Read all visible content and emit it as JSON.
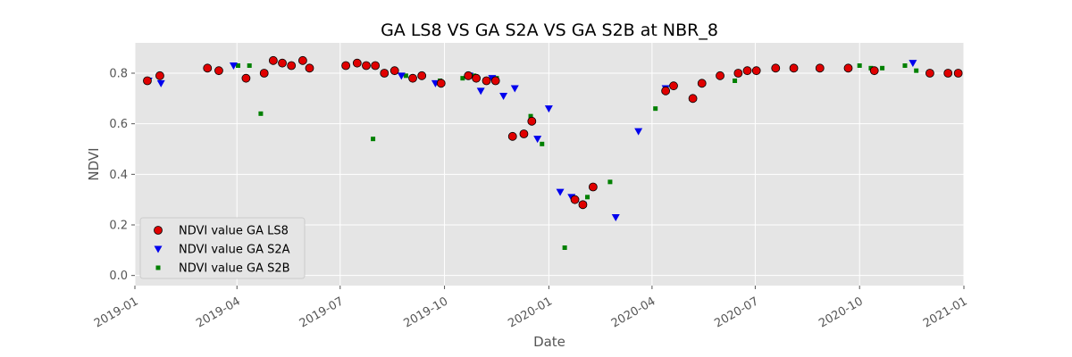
{
  "chart_data": {
    "type": "scatter",
    "title": "GA LS8 VS GA S2A VS GA S2B at NBR_8",
    "xlabel": "Date",
    "ylabel": "NDVI",
    "xlim": [
      "2019-01-01",
      "2021-01-01"
    ],
    "ylim": [
      -0.04,
      0.92
    ],
    "x_ticks": [
      "2019-01",
      "2019-04",
      "2019-07",
      "2019-10",
      "2020-01",
      "2020-04",
      "2020-07",
      "2020-10",
      "2021-01"
    ],
    "y_ticks": [
      "0.0",
      "0.2",
      "0.4",
      "0.6",
      "0.8"
    ],
    "grid": true,
    "legend_position": "lower-left",
    "series": [
      {
        "name": "NDVI value GA LS8",
        "marker": "circle",
        "color": "#e00000",
        "edge_color": "#000000",
        "points": [
          [
            "2019-01-12",
            0.77
          ],
          [
            "2019-01-23",
            0.79
          ],
          [
            "2019-03-06",
            0.82
          ],
          [
            "2019-03-16",
            0.81
          ],
          [
            "2019-04-09",
            0.78
          ],
          [
            "2019-04-25",
            0.8
          ],
          [
            "2019-05-03",
            0.85
          ],
          [
            "2019-05-11",
            0.84
          ],
          [
            "2019-05-19",
            0.83
          ],
          [
            "2019-05-29",
            0.85
          ],
          [
            "2019-06-04",
            0.82
          ],
          [
            "2019-07-06",
            0.83
          ],
          [
            "2019-07-16",
            0.84
          ],
          [
            "2019-07-24",
            0.83
          ],
          [
            "2019-08-01",
            0.83
          ],
          [
            "2019-08-09",
            0.8
          ],
          [
            "2019-08-18",
            0.81
          ],
          [
            "2019-09-03",
            0.78
          ],
          [
            "2019-09-11",
            0.79
          ],
          [
            "2019-09-28",
            0.76
          ],
          [
            "2019-10-22",
            0.79
          ],
          [
            "2019-10-29",
            0.78
          ],
          [
            "2019-11-07",
            0.77
          ],
          [
            "2019-11-15",
            0.77
          ],
          [
            "2019-11-30",
            0.55
          ],
          [
            "2019-12-10",
            0.56
          ],
          [
            "2019-12-17",
            0.61
          ],
          [
            "2020-01-24",
            0.3
          ],
          [
            "2020-01-31",
            0.28
          ],
          [
            "2020-02-09",
            0.35
          ],
          [
            "2020-04-13",
            0.73
          ],
          [
            "2020-04-20",
            0.75
          ],
          [
            "2020-05-07",
            0.7
          ],
          [
            "2020-05-15",
            0.76
          ],
          [
            "2020-05-31",
            0.79
          ],
          [
            "2020-06-16",
            0.8
          ],
          [
            "2020-06-24",
            0.81
          ],
          [
            "2020-07-02",
            0.81
          ],
          [
            "2020-07-19",
            0.82
          ],
          [
            "2020-08-04",
            0.82
          ],
          [
            "2020-08-27",
            0.82
          ],
          [
            "2020-09-21",
            0.82
          ],
          [
            "2020-10-14",
            0.81
          ],
          [
            "2020-12-02",
            0.8
          ],
          [
            "2020-12-18",
            0.8
          ],
          [
            "2020-12-27",
            0.8
          ]
        ]
      },
      {
        "name": "NDVI value GA S2A",
        "marker": "triangle-down",
        "color": "#0000ee",
        "points": [
          [
            "2019-01-13",
            0.77
          ],
          [
            "2019-01-24",
            0.76
          ],
          [
            "2019-03-29",
            0.83
          ],
          [
            "2019-08-24",
            0.79
          ],
          [
            "2019-09-23",
            0.76
          ],
          [
            "2019-10-23",
            0.79
          ],
          [
            "2019-11-02",
            0.73
          ],
          [
            "2019-11-12",
            0.78
          ],
          [
            "2019-11-22",
            0.71
          ],
          [
            "2019-12-02",
            0.74
          ],
          [
            "2019-12-22",
            0.54
          ],
          [
            "2020-01-01",
            0.66
          ],
          [
            "2020-01-11",
            0.33
          ],
          [
            "2020-01-21",
            0.31
          ],
          [
            "2020-01-31",
            0.28
          ],
          [
            "2020-02-29",
            0.23
          ],
          [
            "2020-03-20",
            0.57
          ],
          [
            "2020-04-13",
            0.74
          ],
          [
            "2020-11-17",
            0.84
          ]
        ]
      },
      {
        "name": "NDVI value GA S2B",
        "marker": "square",
        "color": "#008000",
        "points": [
          [
            "2019-04-02",
            0.83
          ],
          [
            "2019-04-12",
            0.83
          ],
          [
            "2019-04-22",
            0.64
          ],
          [
            "2019-07-30",
            0.54
          ],
          [
            "2019-08-28",
            0.79
          ],
          [
            "2019-09-27",
            0.77
          ],
          [
            "2019-10-17",
            0.78
          ],
          [
            "2019-10-27",
            0.79
          ],
          [
            "2019-11-16",
            0.78
          ],
          [
            "2019-12-16",
            0.63
          ],
          [
            "2019-12-26",
            0.52
          ],
          [
            "2020-01-15",
            0.11
          ],
          [
            "2020-02-04",
            0.31
          ],
          [
            "2020-02-24",
            0.37
          ],
          [
            "2020-04-04",
            0.66
          ],
          [
            "2020-06-13",
            0.77
          ],
          [
            "2020-10-01",
            0.83
          ],
          [
            "2020-10-11",
            0.82
          ],
          [
            "2020-10-21",
            0.82
          ],
          [
            "2020-11-10",
            0.83
          ],
          [
            "2020-11-20",
            0.81
          ]
        ]
      }
    ]
  }
}
